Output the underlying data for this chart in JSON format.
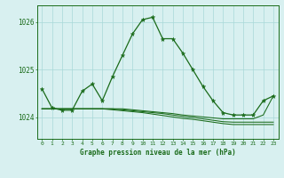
{
  "title": "Graphe pression niveau de la mer (hPa)",
  "background_color": "#d8f0f0",
  "grid_color": "#a8d8d8",
  "line_color": "#1a6b1a",
  "xlim": [
    -0.5,
    23.5
  ],
  "ylim": [
    1023.55,
    1026.35
  ],
  "yticks": [
    1024,
    1025,
    1026
  ],
  "xticks": [
    0,
    1,
    2,
    3,
    4,
    5,
    6,
    7,
    8,
    9,
    10,
    11,
    12,
    13,
    14,
    15,
    16,
    17,
    18,
    19,
    20,
    21,
    22,
    23
  ],
  "series_main": [
    1024.6,
    1024.2,
    1024.15,
    1024.15,
    1024.55,
    1024.7,
    1024.35,
    1024.85,
    1025.3,
    1025.75,
    1026.05,
    1026.1,
    1025.65,
    1025.65,
    1025.35,
    1025.0,
    1024.65,
    1024.35,
    1024.1,
    1024.05,
    1024.05,
    1024.05,
    1024.35,
    1024.45
  ],
  "series_flat": [
    [
      1024.18,
      1024.18,
      1024.18,
      1024.18,
      1024.18,
      1024.18,
      1024.18,
      1024.18,
      1024.18,
      1024.16,
      1024.14,
      1024.12,
      1024.1,
      1024.08,
      1024.05,
      1024.03,
      1024.01,
      1023.99,
      1023.97,
      1023.97,
      1023.97,
      1023.97,
      1024.05,
      1024.45
    ],
    [
      1024.18,
      1024.18,
      1024.18,
      1024.18,
      1024.18,
      1024.18,
      1024.18,
      1024.18,
      1024.16,
      1024.14,
      1024.12,
      1024.1,
      1024.08,
      1024.05,
      1024.02,
      1024.0,
      1023.97,
      1023.94,
      1023.91,
      1023.9,
      1023.9,
      1023.9,
      1023.9,
      1023.9
    ],
    [
      1024.18,
      1024.18,
      1024.18,
      1024.18,
      1024.18,
      1024.18,
      1024.18,
      1024.16,
      1024.14,
      1024.12,
      1024.1,
      1024.07,
      1024.04,
      1024.01,
      1023.98,
      1023.96,
      1023.93,
      1023.9,
      1023.87,
      1023.85,
      1023.85,
      1023.85,
      1023.85,
      1023.85
    ]
  ]
}
